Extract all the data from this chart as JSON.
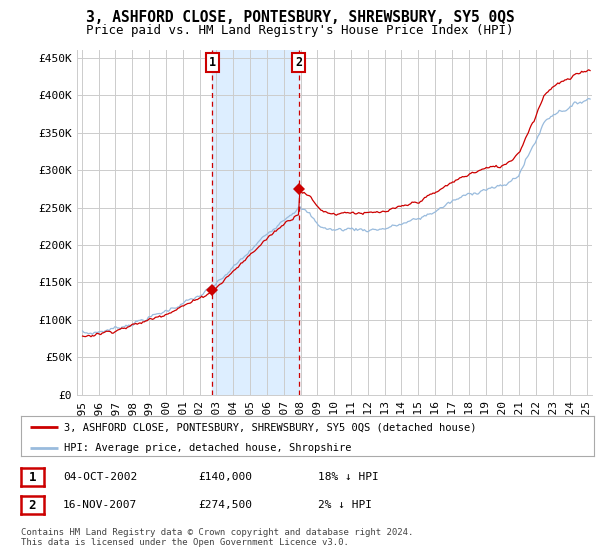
{
  "title": "3, ASHFORD CLOSE, PONTESBURY, SHREWSBURY, SY5 0QS",
  "subtitle": "Price paid vs. HM Land Registry's House Price Index (HPI)",
  "ylabel_ticks": [
    "£0",
    "£50K",
    "£100K",
    "£150K",
    "£200K",
    "£250K",
    "£300K",
    "£350K",
    "£400K",
    "£450K"
  ],
  "ylim": [
    0,
    460000
  ],
  "xlim_start": 1994.7,
  "xlim_end": 2025.3,
  "purchase1_x": 2002.76,
  "purchase1_y": 140000,
  "purchase2_x": 2007.88,
  "purchase2_y": 274500,
  "vline1_x": 2002.76,
  "vline2_x": 2007.88,
  "red_line_color": "#cc0000",
  "blue_line_color": "#99bbdd",
  "vline_color": "#cc0000",
  "shade_color": "#ddeeff",
  "background_color": "#ffffff",
  "plot_bg_color": "#ffffff",
  "grid_color": "#cccccc",
  "legend_label_red": "3, ASHFORD CLOSE, PONTESBURY, SHREWSBURY, SY5 0QS (detached house)",
  "legend_label_blue": "HPI: Average price, detached house, Shropshire",
  "table_row1": [
    "1",
    "04-OCT-2002",
    "£140,000",
    "18% ↓ HPI"
  ],
  "table_row2": [
    "2",
    "16-NOV-2007",
    "£274,500",
    "2% ↓ HPI"
  ],
  "footer": "Contains HM Land Registry data © Crown copyright and database right 2024.\nThis data is licensed under the Open Government Licence v3.0.",
  "title_fontsize": 10.5,
  "subtitle_fontsize": 9,
  "tick_fontsize": 8
}
